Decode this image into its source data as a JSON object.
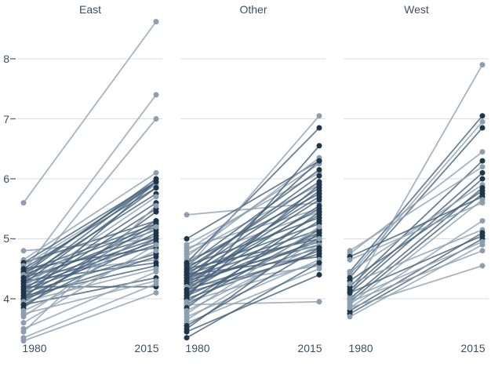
{
  "chart_data": {
    "type": "line",
    "subtype": "slopegraph",
    "x_ticks": [
      "1980",
      "2015"
    ],
    "y_ticks": [
      "8",
      "7",
      "6",
      "5",
      "4"
    ],
    "y_tick_values": [
      8,
      7,
      6,
      5,
      4
    ],
    "ylim": [
      3.2,
      8.8
    ],
    "grid": "horizontal-on",
    "legend": "none",
    "colors": {
      "light_dot": "#8e9eae",
      "dark_dot": "#1f3549",
      "light_line": "#8fa1b1",
      "dark_line": "#47627b",
      "grid_line": "#d9dee3",
      "tick_mark": "#5f7183",
      "axis_text": "#3d4e62"
    },
    "panels": [
      {
        "title": "East",
        "lines": [
          [
            5.6,
            8.62,
            "l"
          ],
          [
            4.45,
            7.4,
            "l"
          ],
          [
            4.3,
            7.0,
            "l"
          ],
          [
            4.8,
            5.0,
            "l"
          ],
          [
            4.65,
            6.1,
            "l"
          ],
          [
            4.6,
            5.95,
            "d"
          ],
          [
            4.6,
            5.3,
            "d"
          ],
          [
            4.55,
            5.9,
            "l"
          ],
          [
            4.5,
            5.85,
            "d"
          ],
          [
            4.5,
            4.85,
            "d"
          ],
          [
            4.45,
            5.95,
            "d"
          ],
          [
            4.45,
            5.25,
            "d"
          ],
          [
            4.4,
            6.0,
            "d"
          ],
          [
            4.4,
            5.2,
            "d"
          ],
          [
            4.4,
            4.65,
            "l"
          ],
          [
            4.35,
            5.75,
            "d"
          ],
          [
            4.35,
            5.05,
            "d"
          ],
          [
            4.3,
            5.95,
            "d"
          ],
          [
            4.3,
            5.15,
            "d"
          ],
          [
            4.3,
            4.6,
            "d"
          ],
          [
            4.25,
            5.85,
            "d"
          ],
          [
            4.25,
            5.0,
            "d"
          ],
          [
            4.2,
            5.7,
            "l"
          ],
          [
            4.2,
            4.95,
            "d"
          ],
          [
            4.2,
            4.2,
            "d"
          ],
          [
            4.15,
            5.6,
            "d"
          ],
          [
            4.15,
            4.9,
            "d"
          ],
          [
            4.1,
            5.5,
            "d"
          ],
          [
            4.1,
            4.75,
            "d"
          ],
          [
            4.05,
            5.3,
            "d"
          ],
          [
            4.05,
            4.55,
            "d"
          ],
          [
            4.0,
            5.95,
            "d"
          ],
          [
            4.0,
            5.1,
            "d"
          ],
          [
            4.0,
            4.7,
            "d"
          ],
          [
            3.95,
            5.25,
            "d"
          ],
          [
            3.95,
            4.5,
            "l"
          ],
          [
            3.9,
            5.0,
            "d"
          ],
          [
            3.9,
            4.35,
            "d"
          ],
          [
            3.85,
            5.45,
            "d"
          ],
          [
            3.8,
            4.8,
            "l"
          ],
          [
            3.75,
            4.3,
            "l"
          ],
          [
            3.7,
            5.2,
            "l"
          ],
          [
            3.6,
            4.9,
            "l"
          ],
          [
            3.5,
            4.45,
            "l"
          ],
          [
            3.45,
            5.55,
            "l"
          ],
          [
            3.35,
            4.25,
            "l"
          ],
          [
            3.3,
            4.1,
            "l"
          ]
        ]
      },
      {
        "title": "Other",
        "lines": [
          [
            5.4,
            5.6,
            "l"
          ],
          [
            5.0,
            6.3,
            "d"
          ],
          [
            4.9,
            6.1,
            "l"
          ],
          [
            4.85,
            5.5,
            "l"
          ],
          [
            4.8,
            6.25,
            "l"
          ],
          [
            4.75,
            5.9,
            "l"
          ],
          [
            4.7,
            6.35,
            "l"
          ],
          [
            4.65,
            5.45,
            "l"
          ],
          [
            4.6,
            6.85,
            "d"
          ],
          [
            4.6,
            5.75,
            "d"
          ],
          [
            4.55,
            6.15,
            "d"
          ],
          [
            4.55,
            5.35,
            "d"
          ],
          [
            4.5,
            7.05,
            "l"
          ],
          [
            4.5,
            5.95,
            "d"
          ],
          [
            4.5,
            5.0,
            "d"
          ],
          [
            4.45,
            6.05,
            "d"
          ],
          [
            4.45,
            5.25,
            "d"
          ],
          [
            4.4,
            5.85,
            "d"
          ],
          [
            4.4,
            5.15,
            "d"
          ],
          [
            4.4,
            4.7,
            "d"
          ],
          [
            4.35,
            5.7,
            "d"
          ],
          [
            4.35,
            5.05,
            "d"
          ],
          [
            4.3,
            6.3,
            "d"
          ],
          [
            4.3,
            5.5,
            "d"
          ],
          [
            4.3,
            4.9,
            "d"
          ],
          [
            4.25,
            5.65,
            "d"
          ],
          [
            4.25,
            4.95,
            "d"
          ],
          [
            4.2,
            5.8,
            "d"
          ],
          [
            4.2,
            5.1,
            "d"
          ],
          [
            4.2,
            4.55,
            "l"
          ],
          [
            4.15,
            5.55,
            "d"
          ],
          [
            4.15,
            4.85,
            "d"
          ],
          [
            4.1,
            5.4,
            "d"
          ],
          [
            4.1,
            4.75,
            "d"
          ],
          [
            4.05,
            5.9,
            "d"
          ],
          [
            4.05,
            5.0,
            "d"
          ],
          [
            4.0,
            6.55,
            "d"
          ],
          [
            4.0,
            4.8,
            "d"
          ],
          [
            3.95,
            5.3,
            "d"
          ],
          [
            3.95,
            4.6,
            "l"
          ],
          [
            3.9,
            5.15,
            "d"
          ],
          [
            3.9,
            3.95,
            "l"
          ],
          [
            3.85,
            5.45,
            "d"
          ],
          [
            3.8,
            4.9,
            "l"
          ],
          [
            3.75,
            5.2,
            "l"
          ],
          [
            3.7,
            4.65,
            "l"
          ],
          [
            3.65,
            5.0,
            "l"
          ],
          [
            3.6,
            4.5,
            "l"
          ],
          [
            3.55,
            4.85,
            "d"
          ],
          [
            3.5,
            5.1,
            "d"
          ],
          [
            3.45,
            4.4,
            "d"
          ],
          [
            3.35,
            4.6,
            "d"
          ]
        ]
      },
      {
        "title": "West",
        "lines": [
          [
            4.05,
            7.9,
            "l"
          ],
          [
            4.45,
            7.05,
            "d"
          ],
          [
            4.4,
            6.95,
            "l"
          ],
          [
            4.35,
            6.85,
            "d"
          ],
          [
            4.75,
            6.45,
            "l"
          ],
          [
            4.2,
            6.3,
            "d"
          ],
          [
            4.8,
            6.2,
            "l"
          ],
          [
            4.15,
            6.1,
            "d"
          ],
          [
            4.1,
            6.0,
            "d"
          ],
          [
            4.45,
            5.9,
            "l"
          ],
          [
            4.0,
            5.85,
            "d"
          ],
          [
            4.3,
            5.8,
            "d"
          ],
          [
            3.95,
            5.75,
            "d"
          ],
          [
            4.7,
            5.7,
            "d"
          ],
          [
            3.9,
            5.65,
            "l"
          ],
          [
            4.65,
            5.6,
            "l"
          ],
          [
            3.85,
            5.3,
            "l"
          ],
          [
            4.25,
            5.15,
            "l"
          ],
          [
            3.8,
            5.1,
            "d"
          ],
          [
            4.1,
            5.05,
            "d"
          ],
          [
            3.75,
            5.0,
            "d"
          ],
          [
            4.0,
            4.95,
            "l"
          ],
          [
            3.7,
            4.9,
            "l"
          ],
          [
            3.95,
            4.8,
            "l"
          ],
          [
            3.85,
            4.55,
            "l"
          ]
        ]
      }
    ]
  }
}
